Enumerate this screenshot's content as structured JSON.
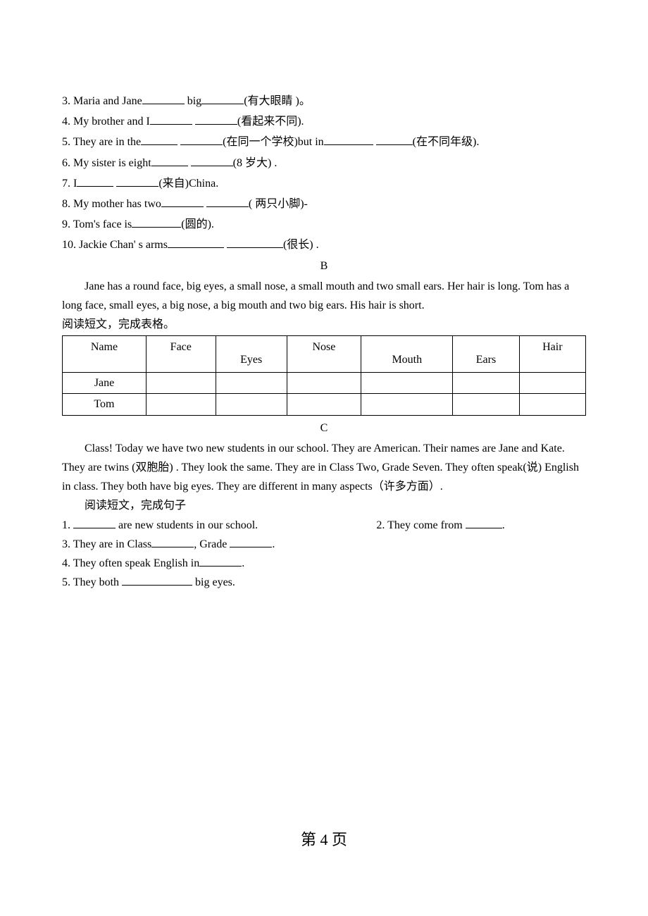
{
  "fillBlanks": {
    "item3": {
      "prefix": "3. Maria and Jane",
      "mid": " big",
      "hint": "(有大眼睛  )。"
    },
    "item4": {
      "prefix": "4. My brother and I",
      "hint": "(看起来不同)."
    },
    "item5": {
      "prefix": "5. They are in the",
      "hint1": "(在同一个学校)but in",
      "hint2": "(在不同年级)."
    },
    "item6": {
      "prefix": "6. My sister is eight",
      "hint": "(8  岁大) ."
    },
    "item7": {
      "prefix": "7. I",
      "hint": "(来自)China."
    },
    "item8": {
      "prefix": "8. My mother has two",
      "hint": "(  两只小脚)-"
    },
    "item9": {
      "prefix": "9. Tom's face is",
      "hint": "(圆的)."
    },
    "item10": {
      "prefix": "10. Jackie Chan' s arms",
      "hint": "(很长) ."
    }
  },
  "sectionB": {
    "letter": "B",
    "passage": "Jane has a round face, big eyes, a small nose, a small mouth and two small ears. Her hair is long. Tom has a long face, small eyes, a big nose, a big mouth and two big ears.    His hair is short.",
    "instruction": "阅读短文，完成表格。",
    "table": {
      "headers": [
        "Name",
        "Face",
        "Eyes",
        "Nose",
        "Mouth",
        "Ears",
        "Hair"
      ],
      "rows": [
        "Jane",
        "Tom"
      ]
    }
  },
  "sectionC": {
    "letter": "C",
    "passage": "Class! Today we have two new students in our school. They are American. Their names are Jane and Kate. They are twins (双胞胎) . They look the same. They are in Class Two, Grade Seven. They often speak(说) English in class.    They both have big eyes.    They are different in many aspects（许多方面）.",
    "instruction": "阅读短文，完成句子",
    "q1": {
      "prefix": "1. ",
      "suffix": " are new students in our school."
    },
    "q2": {
      "prefix": "2. They come from ",
      "suffix": "."
    },
    "q3": {
      "prefix": "3. They are in Class",
      "mid": ", Grade ",
      "suffix": "."
    },
    "q4": {
      "prefix": "4. They often speak English in",
      "suffix": "."
    },
    "q5": {
      "prefix": "5. They both  ",
      "suffix": " big eyes."
    }
  },
  "footer": "第  4  页"
}
